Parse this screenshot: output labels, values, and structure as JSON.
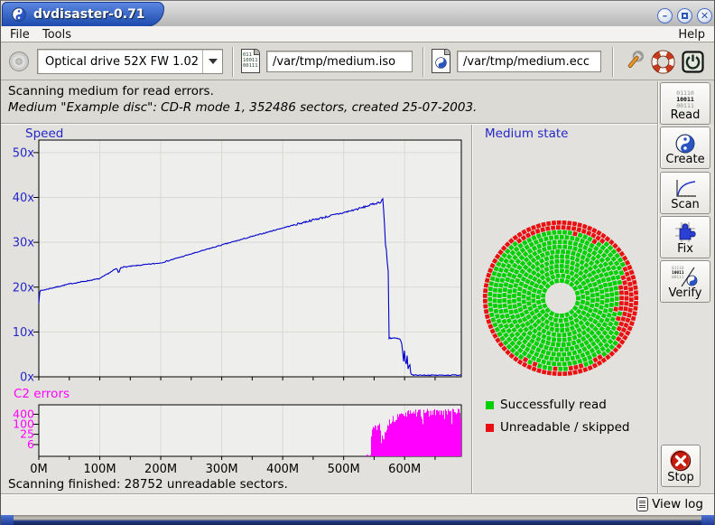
{
  "window": {
    "title": "dvdisaster-0.71"
  },
  "menu": {
    "file": "File",
    "tools": "Tools",
    "help": "Help"
  },
  "toolbar": {
    "drive_value": "Optical drive 52X FW 1.02",
    "iso_value": "/var/tmp/medium.iso",
    "ecc_value": "/var/tmp/medium.ecc",
    "iso_icon_lines": [
      "011",
      "10011",
      "00111"
    ]
  },
  "header": {
    "line1": "Scanning medium for read errors.",
    "line2": "Medium \"Example disc\": CD-R mode 1, 352486 sectors, created 25-07-2003."
  },
  "sidebar": {
    "read_label": "Read",
    "create_label": "Create",
    "scan_label": "Scan",
    "fix_label": "Fix",
    "verify_label": "Verify",
    "stop_label": "Stop",
    "binary_lines": [
      "01110",
      "10011",
      "00111"
    ]
  },
  "panels": {
    "speed_title": "Speed",
    "c2_title": "C2 errors",
    "medium_title": "Medium state"
  },
  "legend": {
    "good_label": "Successfully read",
    "bad_label": "Unreadable / skipped",
    "good_color": "#00cf00",
    "bad_color": "#e81010"
  },
  "footer": {
    "status": "Scanning finished: 28752 unreadable sectors.",
    "view_log": "View log"
  },
  "colors": {
    "speed_line": "#0000cc",
    "c2_fill": "#ff00ff",
    "chart_bg": "#eeeeec",
    "grid": "#d9d9d4",
    "axis_label_blue": "#2626c8",
    "title_tab_blue": "#1d4bae"
  },
  "chart_data": [
    {
      "type": "line",
      "title": "Speed",
      "series_color": "#0000cc",
      "x_ticks": [
        {
          "label": "0M",
          "value": 0
        },
        {
          "label": "100M",
          "value": 100
        },
        {
          "label": "200M",
          "value": 200
        },
        {
          "label": "300M",
          "value": 300
        },
        {
          "label": "400M",
          "value": 400
        },
        {
          "label": "500M",
          "value": 500
        },
        {
          "label": "600M",
          "value": 600
        }
      ],
      "xlim": [
        0,
        693
      ],
      "y_ticks": [
        {
          "label": "0x",
          "value": 0
        },
        {
          "label": "10x",
          "value": 10
        },
        {
          "label": "20x",
          "value": 20
        },
        {
          "label": "30x",
          "value": 30
        },
        {
          "label": "40x",
          "value": 40
        },
        {
          "label": "50x",
          "value": 50
        }
      ],
      "ylim": [
        0,
        52.8
      ],
      "grid": true,
      "points": [
        [
          0,
          16.5
        ],
        [
          1,
          18.8
        ],
        [
          3,
          19.2
        ],
        [
          50,
          20.7
        ],
        [
          100,
          21.9
        ],
        [
          128,
          24.2
        ],
        [
          131,
          23.0
        ],
        [
          134,
          24.4
        ],
        [
          200,
          25.4
        ],
        [
          250,
          27.4
        ],
        [
          300,
          29.4
        ],
        [
          350,
          31.3
        ],
        [
          400,
          33.2
        ],
        [
          450,
          35.0
        ],
        [
          500,
          36.6
        ],
        [
          530,
          37.7
        ],
        [
          548,
          38.5
        ],
        [
          558,
          38.9
        ],
        [
          562,
          39.0
        ],
        [
          564,
          40.2
        ],
        [
          565,
          37.8
        ],
        [
          566,
          36.5
        ],
        [
          567,
          34.0
        ],
        [
          568,
          30.0
        ],
        [
          570,
          28.5
        ],
        [
          571,
          26.0
        ],
        [
          573,
          23.8
        ],
        [
          574,
          22.5
        ],
        [
          574.5,
          8.7
        ],
        [
          588,
          8.5
        ],
        [
          593,
          8.3
        ],
        [
          596,
          7.0
        ],
        [
          598,
          3.0
        ],
        [
          600,
          6.2
        ],
        [
          602,
          1.6
        ],
        [
          604,
          5.0
        ],
        [
          606,
          1.0
        ],
        [
          608,
          3.6
        ],
        [
          610,
          0.7
        ],
        [
          613,
          0.4
        ],
        [
          650,
          0.35
        ],
        [
          693,
          0.4
        ]
      ]
    },
    {
      "type": "bar",
      "title": "C2 errors",
      "series_color": "#ff00ff",
      "yscale": "log",
      "y_ticks": [
        {
          "label": "6",
          "value": 6
        },
        {
          "label": "25",
          "value": 25
        },
        {
          "label": "100",
          "value": 100
        },
        {
          "label": "400",
          "value": 400
        }
      ],
      "xlim": [
        0,
        693
      ],
      "first_error_at": 539,
      "envelope": [
        [
          538,
          0
        ],
        [
          539,
          5
        ],
        [
          540,
          0
        ],
        [
          544,
          0
        ],
        [
          545,
          25
        ],
        [
          548,
          55
        ],
        [
          551,
          85
        ],
        [
          554,
          65
        ],
        [
          557,
          105
        ],
        [
          560,
          80
        ],
        [
          562,
          45
        ],
        [
          564,
          20
        ],
        [
          566,
          10
        ],
        [
          568,
          45
        ],
        [
          571,
          80
        ],
        [
          574,
          120
        ],
        [
          578,
          170
        ],
        [
          583,
          230
        ],
        [
          588,
          300
        ],
        [
          593,
          360
        ],
        [
          598,
          420
        ],
        [
          605,
          470
        ],
        [
          615,
          520
        ],
        [
          625,
          545
        ],
        [
          640,
          570
        ],
        [
          655,
          545
        ],
        [
          670,
          585
        ],
        [
          685,
          560
        ],
        [
          693,
          575
        ]
      ]
    },
    {
      "type": "disc-map",
      "title": "Medium state",
      "total_sectors": 352486,
      "unreadable_sectors": 28752,
      "rings": 13,
      "colors": {
        "good": "#00cf00",
        "bad": "#e81010"
      }
    }
  ]
}
